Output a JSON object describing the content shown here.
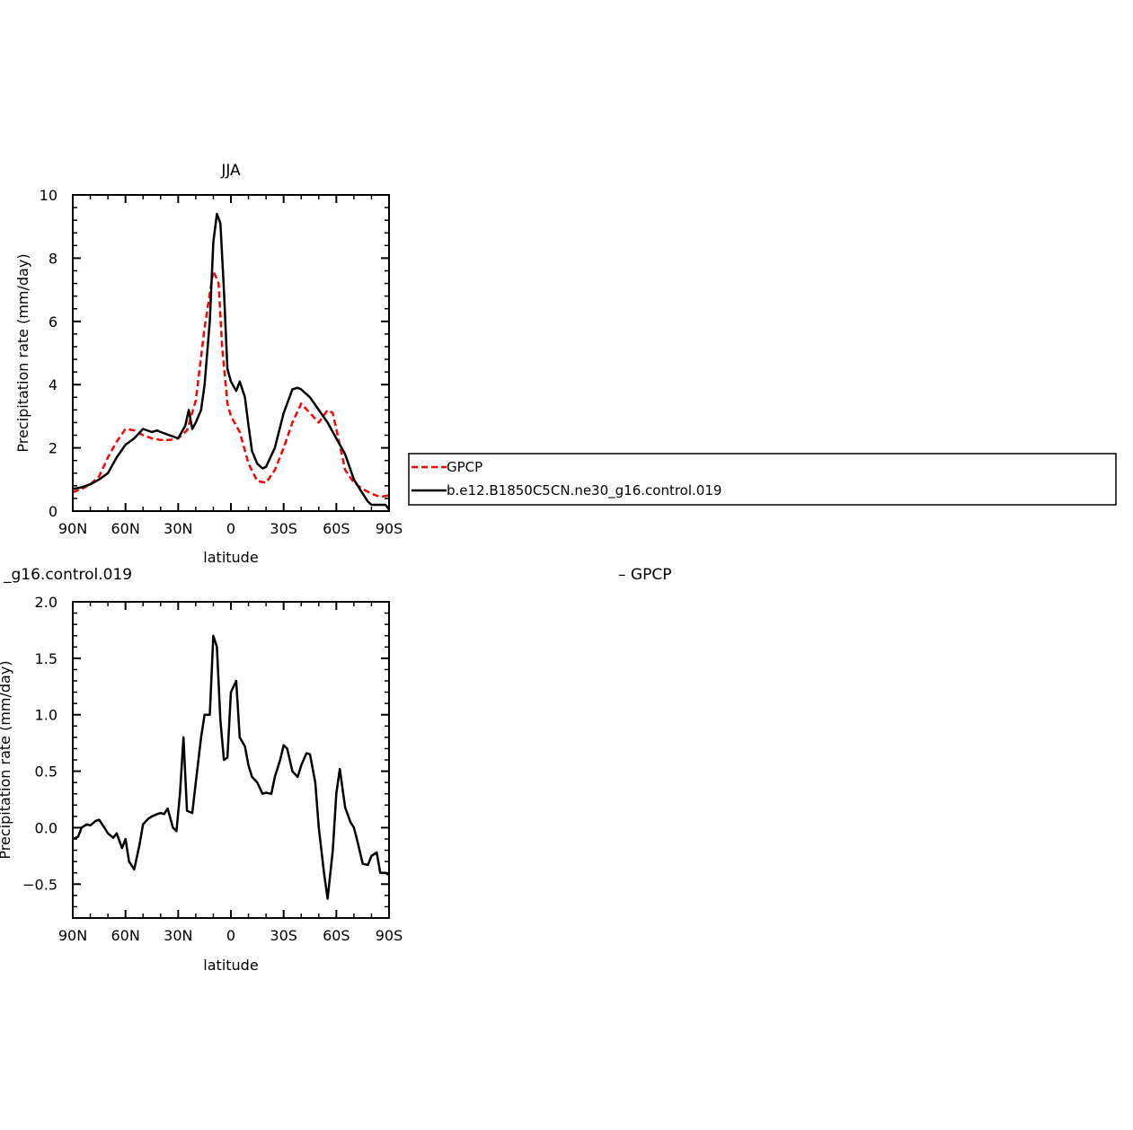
{
  "chart_data": [
    {
      "type": "line",
      "title": "JJA",
      "xlabel": "latitude",
      "ylabel": "Precipitation rate (mm/day)",
      "xlim": [
        90,
        -90
      ],
      "ylim": [
        0,
        10
      ],
      "x_ticks": [
        {
          "value": 90,
          "label": "90N"
        },
        {
          "value": 60,
          "label": "60N"
        },
        {
          "value": 30,
          "label": "30N"
        },
        {
          "value": 0,
          "label": "0"
        },
        {
          "value": -30,
          "label": "30S"
        },
        {
          "value": -60,
          "label": "60S"
        },
        {
          "value": -90,
          "label": "90S"
        }
      ],
      "y_ticks": [
        {
          "value": 0,
          "label": "0"
        },
        {
          "value": 2,
          "label": "2"
        },
        {
          "value": 4,
          "label": "4"
        },
        {
          "value": 6,
          "label": "6"
        },
        {
          "value": 8,
          "label": "8"
        },
        {
          "value": 10,
          "label": "10"
        }
      ],
      "legend": {
        "placement": "right",
        "entries": [
          "GPCP",
          "b.e12.B1850C5CN.ne30_g16.control.019"
        ]
      },
      "series": [
        {
          "name": "GPCP",
          "color": "#ff0000",
          "style": "dashed",
          "x": [
            90,
            85,
            80,
            75,
            70,
            65,
            60,
            55,
            50,
            45,
            40,
            35,
            30,
            25,
            20,
            15,
            10,
            7,
            5,
            2,
            0,
            -5,
            -10,
            -15,
            -20,
            -25,
            -30,
            -35,
            -40,
            -45,
            -50,
            -55,
            -58,
            -60,
            -65,
            -70,
            -75,
            -80,
            -85,
            -90
          ],
          "y": [
            0.6,
            0.7,
            0.85,
            1.1,
            1.7,
            2.2,
            2.6,
            2.55,
            2.4,
            2.3,
            2.25,
            2.25,
            2.3,
            2.55,
            3.5,
            5.8,
            7.6,
            7.2,
            5.2,
            3.4,
            3.0,
            2.5,
            1.5,
            0.95,
            0.9,
            1.3,
            2.0,
            2.8,
            3.4,
            3.1,
            2.8,
            3.2,
            3.1,
            2.6,
            1.3,
            0.9,
            0.7,
            0.55,
            0.45,
            0.5
          ]
        },
        {
          "name": "b.e12.B1850C5CN.ne30_g16.control.019",
          "color": "#000000",
          "style": "solid",
          "x": [
            90,
            85,
            80,
            75,
            70,
            65,
            60,
            55,
            50,
            45,
            42,
            40,
            35,
            30,
            26,
            24,
            22,
            20,
            17,
            15,
            12,
            10,
            8,
            6,
            4,
            2,
            0,
            -3,
            -5,
            -8,
            -10,
            -12,
            -15,
            -18,
            -20,
            -25,
            -30,
            -35,
            -38,
            -40,
            -45,
            -50,
            -55,
            -60,
            -65,
            -70,
            -75,
            -78,
            -80,
            -85,
            -88,
            -90
          ],
          "y": [
            0.7,
            0.75,
            0.85,
            1.0,
            1.2,
            1.7,
            2.1,
            2.3,
            2.6,
            2.5,
            2.55,
            2.5,
            2.4,
            2.3,
            2.7,
            3.2,
            2.6,
            2.8,
            3.2,
            4.0,
            6.0,
            8.5,
            9.4,
            9.1,
            7.0,
            4.5,
            4.1,
            3.8,
            4.1,
            3.6,
            2.7,
            1.9,
            1.5,
            1.35,
            1.4,
            2.0,
            3.1,
            3.85,
            3.9,
            3.85,
            3.6,
            3.2,
            2.8,
            2.3,
            1.8,
            1.0,
            0.55,
            0.3,
            0.2,
            0.2,
            0.2,
            0.05
          ]
        }
      ]
    },
    {
      "type": "line",
      "title": "_g16.control.019",
      "title_right": "– GPCP",
      "xlabel": "latitude",
      "ylabel": "Precipitation rate (mm/day)",
      "xlim": [
        90,
        -90
      ],
      "ylim": [
        -0.8,
        2.0
      ],
      "x_ticks": [
        {
          "value": 90,
          "label": "90N"
        },
        {
          "value": 60,
          "label": "60N"
        },
        {
          "value": 30,
          "label": "30N"
        },
        {
          "value": 0,
          "label": "0"
        },
        {
          "value": -30,
          "label": "30S"
        },
        {
          "value": -60,
          "label": "60S"
        },
        {
          "value": -90,
          "label": "90S"
        }
      ],
      "y_ticks": [
        {
          "value": -0.5,
          "label": "−0.5"
        },
        {
          "value": 0.0,
          "label": "0.0"
        },
        {
          "value": 0.5,
          "label": "0.5"
        },
        {
          "value": 1.0,
          "label": "1.0"
        },
        {
          "value": 1.5,
          "label": "1.5"
        },
        {
          "value": 2.0,
          "label": "2.0"
        }
      ],
      "series": [
        {
          "color": "#000000",
          "style": "solid",
          "x": [
            90,
            87,
            85,
            82,
            80,
            77,
            75,
            72,
            70,
            67,
            65,
            62,
            60,
            58,
            55,
            52,
            50,
            47,
            45,
            42,
            40,
            38,
            36,
            33,
            31,
            29,
            27,
            25,
            22,
            20,
            17,
            15,
            12,
            10,
            8,
            6,
            4,
            2,
            0,
            -3,
            -5,
            -8,
            -10,
            -12,
            -15,
            -18,
            -20,
            -23,
            -25,
            -28,
            -30,
            -32,
            -35,
            -38,
            -40,
            -43,
            -45,
            -48,
            -50,
            -53,
            -55,
            -58,
            -60,
            -62,
            -65,
            -68,
            -70,
            -72,
            -75,
            -78,
            -80,
            -83,
            -85,
            -88,
            -90
          ],
          "y": [
            -0.1,
            -0.08,
            0.0,
            0.03,
            0.02,
            0.06,
            0.07,
            0.0,
            -0.05,
            -0.09,
            -0.05,
            -0.18,
            -0.1,
            -0.3,
            -0.37,
            -0.15,
            0.03,
            0.08,
            0.1,
            0.12,
            0.13,
            0.12,
            0.17,
            0.0,
            -0.03,
            0.3,
            0.8,
            0.15,
            0.13,
            0.4,
            0.8,
            1.0,
            1.0,
            1.7,
            1.6,
            0.95,
            0.6,
            0.62,
            1.2,
            1.3,
            0.8,
            0.72,
            0.55,
            0.45,
            0.4,
            0.3,
            0.31,
            0.3,
            0.45,
            0.6,
            0.73,
            0.7,
            0.5,
            0.45,
            0.55,
            0.66,
            0.65,
            0.4,
            0.0,
            -0.4,
            -0.63,
            -0.2,
            0.3,
            0.52,
            0.18,
            0.05,
            0.0,
            -0.12,
            -0.32,
            -0.33,
            -0.25,
            -0.22,
            -0.4,
            -0.4,
            -0.42
          ]
        }
      ]
    }
  ]
}
